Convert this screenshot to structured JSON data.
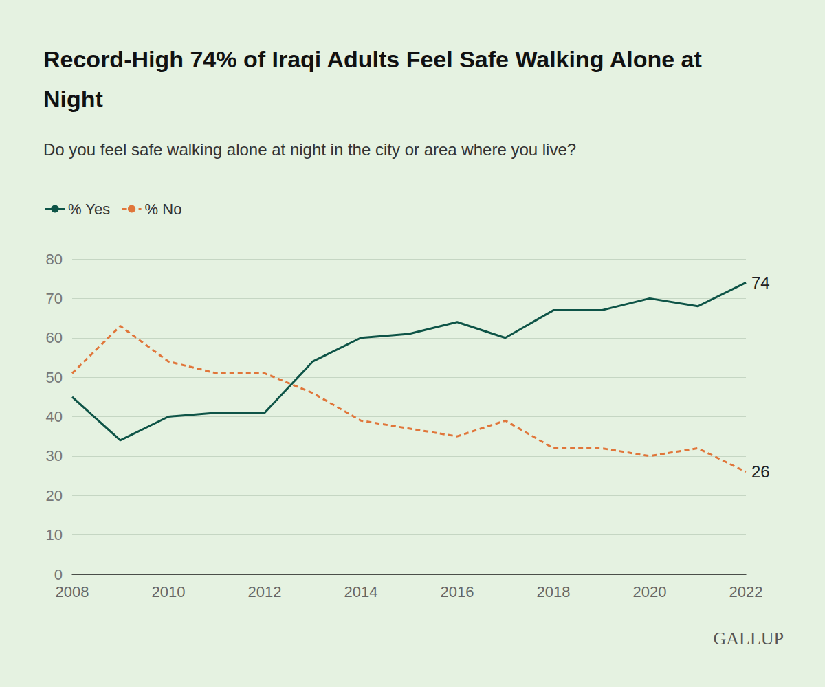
{
  "chart_data": {
    "type": "line",
    "title": "Record-High 74% of Iraqi Adults Feel Safe Walking Alone at Night",
    "subtitle": "Do you feel safe walking alone at night in the city or area where you live?",
    "source": "GALLUP",
    "x": [
      2008,
      2009,
      2010,
      2011,
      2012,
      2013,
      2014,
      2015,
      2016,
      2017,
      2018,
      2019,
      2020,
      2021,
      2022
    ],
    "series": [
      {
        "name": "% Yes",
        "color": "#0e5447",
        "line_style": "solid",
        "marker": "none",
        "values": [
          45,
          34,
          40,
          41,
          41,
          54,
          60,
          61,
          64,
          60,
          67,
          67,
          70,
          68,
          74
        ],
        "annotations": [
          {
            "x": 2022,
            "y": 74,
            "text": "74"
          }
        ]
      },
      {
        "name": "% No",
        "color": "#e0763a",
        "line_style": "dashed",
        "marker": "none",
        "values": [
          51,
          63,
          54,
          51,
          51,
          46,
          39,
          37,
          35,
          39,
          32,
          32,
          30,
          32,
          26
        ],
        "annotations": [
          {
            "x": 2022,
            "y": 26,
            "text": "26"
          }
        ]
      }
    ],
    "xlim": [
      2008,
      2022
    ],
    "xticks": [
      2008,
      2010,
      2012,
      2014,
      2016,
      2018,
      2020,
      2022
    ],
    "ylim": [
      0,
      80
    ],
    "yticks": [
      0,
      10,
      20,
      30,
      40,
      50,
      60,
      70,
      80
    ],
    "grid": true,
    "legend": "top-left"
  }
}
